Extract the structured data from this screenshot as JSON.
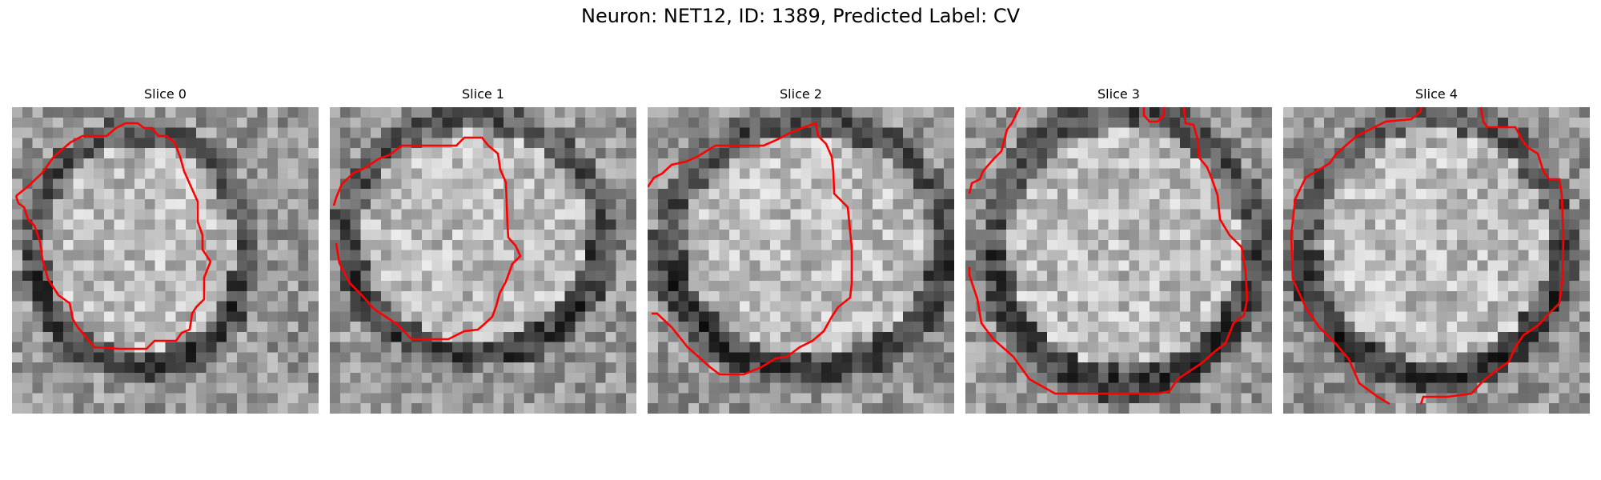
{
  "figure": {
    "title": "Neuron: NET12, ID: 1389, Predicted Label: CV",
    "contour_color": "#ff0000"
  },
  "slices": [
    {
      "title": "Slice 0"
    },
    {
      "title": "Slice 1"
    },
    {
      "title": "Slice 2"
    },
    {
      "title": "Slice 3"
    },
    {
      "title": "Slice 4"
    }
  ]
}
